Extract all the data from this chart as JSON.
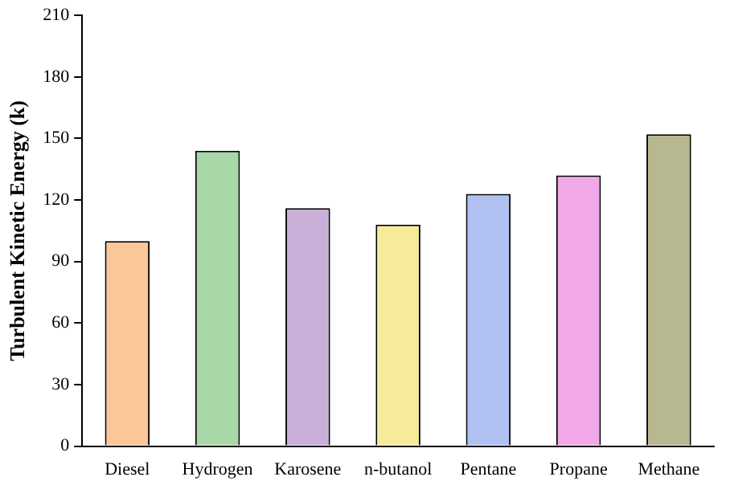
{
  "chart_data": {
    "type": "bar",
    "ylabel": "Turbulent Kinetic Energy (k)",
    "categories": [
      "Diesel",
      "Hydrogen",
      "Karosene",
      "n-butanol",
      "Pentane",
      "Propane",
      "Methane"
    ],
    "values": [
      100,
      144,
      116,
      108,
      123,
      132,
      152
    ],
    "colors": [
      "#f9c79a",
      "#a8d8a8",
      "#c8b0d8",
      "#f5eb9a",
      "#b0c0f0",
      "#f0a8e8",
      "#b8b890"
    ],
    "ylim": [
      0,
      210
    ],
    "yticks": [
      0,
      30,
      60,
      90,
      120,
      150,
      180,
      210
    ],
    "grid": false,
    "legend": false
  }
}
